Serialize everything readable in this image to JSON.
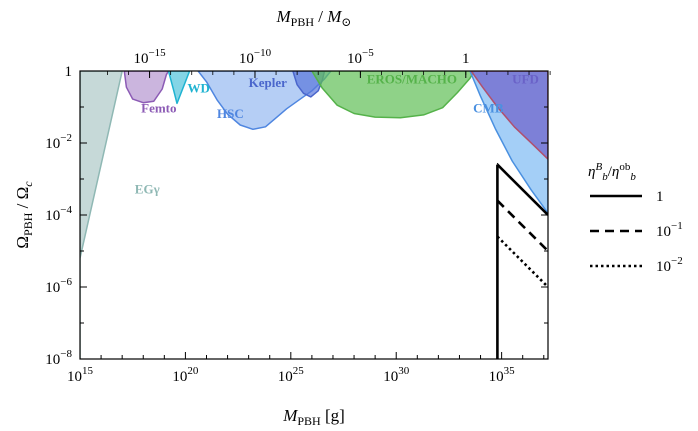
{
  "chart_data": {
    "type": "area",
    "title": "",
    "xlabel": {
      "main": "M",
      "sub": "PBH",
      "unit": " [g]"
    },
    "top_xlabel": {
      "main": "M",
      "sub": "PBH",
      "sep": " / ",
      "main2": "M",
      "sub2": "⊙"
    },
    "ylabel": {
      "main": "Ω",
      "sub": "PBH",
      "sep": " / ",
      "main2": "Ω",
      "sub2": "c"
    },
    "xscale": "log10",
    "yscale": "log10",
    "xlim": [
      15,
      37.2
    ],
    "ylim": [
      -8,
      0
    ],
    "x_ticks": [
      {
        "exp": 15,
        "base": "10",
        "sup": "15"
      },
      {
        "exp": 20,
        "base": "10",
        "sup": "20"
      },
      {
        "exp": 25,
        "base": "10",
        "sup": "25"
      },
      {
        "exp": 30,
        "base": "10",
        "sup": "30"
      },
      {
        "exp": 35,
        "base": "10",
        "sup": "35"
      }
    ],
    "y_ticks": [
      {
        "exp": 0,
        "base": "1",
        "sup": ""
      },
      {
        "exp": -2,
        "base": "10",
        "sup": "−2"
      },
      {
        "exp": -4,
        "base": "10",
        "sup": "−4"
      },
      {
        "exp": -6,
        "base": "10",
        "sup": "−6"
      },
      {
        "exp": -8,
        "base": "10",
        "sup": "−8"
      }
    ],
    "top_ticks": [
      {
        "xlog": 18.3,
        "base": "10",
        "sup": "−15"
      },
      {
        "xlog": 23.3,
        "base": "10",
        "sup": "−10"
      },
      {
        "xlog": 28.3,
        "base": "10",
        "sup": "−5"
      },
      {
        "xlog": 33.3,
        "base": "1",
        "sup": ""
      }
    ],
    "constraints": [
      {
        "name": "EGγ",
        "color": "#4f8a86",
        "fill_opacity": 0.32,
        "stroke": "#8fb8b4",
        "label_pos": [
          17.6,
          -3.4
        ],
        "points": [
          [
            15,
            -8
          ],
          [
            15,
            -5.2
          ],
          [
            17.0,
            0
          ],
          [
            15,
            0
          ]
        ]
      },
      {
        "name": "Femto",
        "color": "#8c5bb5",
        "fill_opacity": 0.45,
        "stroke": "#8c5bb5",
        "label_pos": [
          17.9,
          -1.15
        ],
        "points": [
          [
            17.1,
            0
          ],
          [
            17.2,
            -0.45
          ],
          [
            17.5,
            -0.78
          ],
          [
            18.0,
            -0.88
          ],
          [
            18.5,
            -0.84
          ],
          [
            18.9,
            -0.5
          ],
          [
            19.1,
            -0.1
          ],
          [
            19.2,
            0
          ]
        ]
      },
      {
        "name": "WD",
        "color": "#1fb3d1",
        "fill_opacity": 0.55,
        "stroke": "#1fb3d1",
        "label_pos": [
          20.1,
          -0.6
        ],
        "points": [
          [
            19.2,
            0
          ],
          [
            19.45,
            -0.55
          ],
          [
            19.6,
            -0.9
          ],
          [
            20.2,
            0
          ]
        ]
      },
      {
        "name": "HSC",
        "color": "#5a93e8",
        "fill_opacity": 0.45,
        "stroke": "#4f86e0",
        "label_pos": [
          21.5,
          -1.3
        ],
        "points": [
          [
            20.6,
            0
          ],
          [
            21.0,
            -0.3
          ],
          [
            21.5,
            -0.8
          ],
          [
            22.0,
            -1.2
          ],
          [
            22.6,
            -1.5
          ],
          [
            23.2,
            -1.62
          ],
          [
            23.8,
            -1.55
          ],
          [
            24.3,
            -1.3
          ],
          [
            24.8,
            -1.05
          ],
          [
            25.4,
            -0.8
          ],
          [
            26.0,
            -0.55
          ],
          [
            26.6,
            -0.22
          ],
          [
            26.9,
            0
          ]
        ]
      },
      {
        "name": "Kepler",
        "color": "#5a78dc",
        "fill_opacity": 0.7,
        "stroke": "#4a66cc",
        "label_pos": [
          23.0,
          -0.45
        ],
        "points": [
          [
            25.1,
            0
          ],
          [
            25.3,
            -0.38
          ],
          [
            25.6,
            -0.62
          ],
          [
            25.95,
            -0.72
          ],
          [
            26.3,
            -0.55
          ],
          [
            26.5,
            -0.25
          ],
          [
            26.6,
            0
          ]
        ]
      },
      {
        "name": "EROS/MACHO",
        "color": "#5fbf55",
        "fill_opacity": 0.7,
        "stroke": "#55b24a",
        "label_pos": [
          28.6,
          -0.35
        ],
        "points": [
          [
            26.0,
            0
          ],
          [
            26.5,
            -0.48
          ],
          [
            27.2,
            -0.95
          ],
          [
            28.0,
            -1.18
          ],
          [
            29.0,
            -1.28
          ],
          [
            30.2,
            -1.3
          ],
          [
            31.3,
            -1.22
          ],
          [
            32.2,
            -1.02
          ],
          [
            32.9,
            -0.6
          ],
          [
            33.5,
            -0.2
          ],
          [
            33.7,
            0
          ]
        ]
      },
      {
        "name": "CMB",
        "color": "#5aa8f0",
        "fill_opacity": 0.55,
        "stroke": "#4a90e0",
        "label_pos": [
          33.65,
          -1.15
        ],
        "points": [
          [
            33.5,
            0
          ],
          [
            34.0,
            -0.7
          ],
          [
            34.7,
            -1.6
          ],
          [
            35.5,
            -2.5
          ],
          [
            36.4,
            -3.3
          ],
          [
            37.2,
            -3.95
          ],
          [
            37.2,
            0
          ]
        ]
      },
      {
        "name": "UFD",
        "color": "#7066cc",
        "fill_opacity": 0.75,
        "stroke": "#b0506e",
        "label_pos": [
          35.5,
          -0.35
        ],
        "points": [
          [
            33.55,
            0
          ],
          [
            34.1,
            -0.45
          ],
          [
            34.8,
            -1.0
          ],
          [
            35.6,
            -1.55
          ],
          [
            36.5,
            -2.05
          ],
          [
            37.2,
            -2.45
          ],
          [
            37.2,
            0
          ]
        ]
      }
    ],
    "series": [
      {
        "name": "1",
        "dash": "solid",
        "label_sup": "",
        "points": [
          [
            34.8,
            -2.6
          ],
          [
            37.2,
            -4.0
          ]
        ]
      },
      {
        "name": "10",
        "dash": "dashed",
        "label_sup": "−1",
        "points": [
          [
            34.8,
            -3.6
          ],
          [
            37.2,
            -5.0
          ]
        ]
      },
      {
        "name": "10",
        "dash": "dotted",
        "label_sup": "−2",
        "points": [
          [
            34.8,
            -4.6
          ],
          [
            37.2,
            -6.0
          ]
        ]
      }
    ],
    "boundary_line": {
      "x": 34.8,
      "from": -8,
      "to": -2.6
    },
    "legend": {
      "title": {
        "a": "η",
        "a_sup": "B",
        "a_sub": "b",
        "slash": "/",
        "b": "η",
        "b_sup": "ob",
        "b_sub": "b"
      },
      "placement": "right"
    }
  }
}
